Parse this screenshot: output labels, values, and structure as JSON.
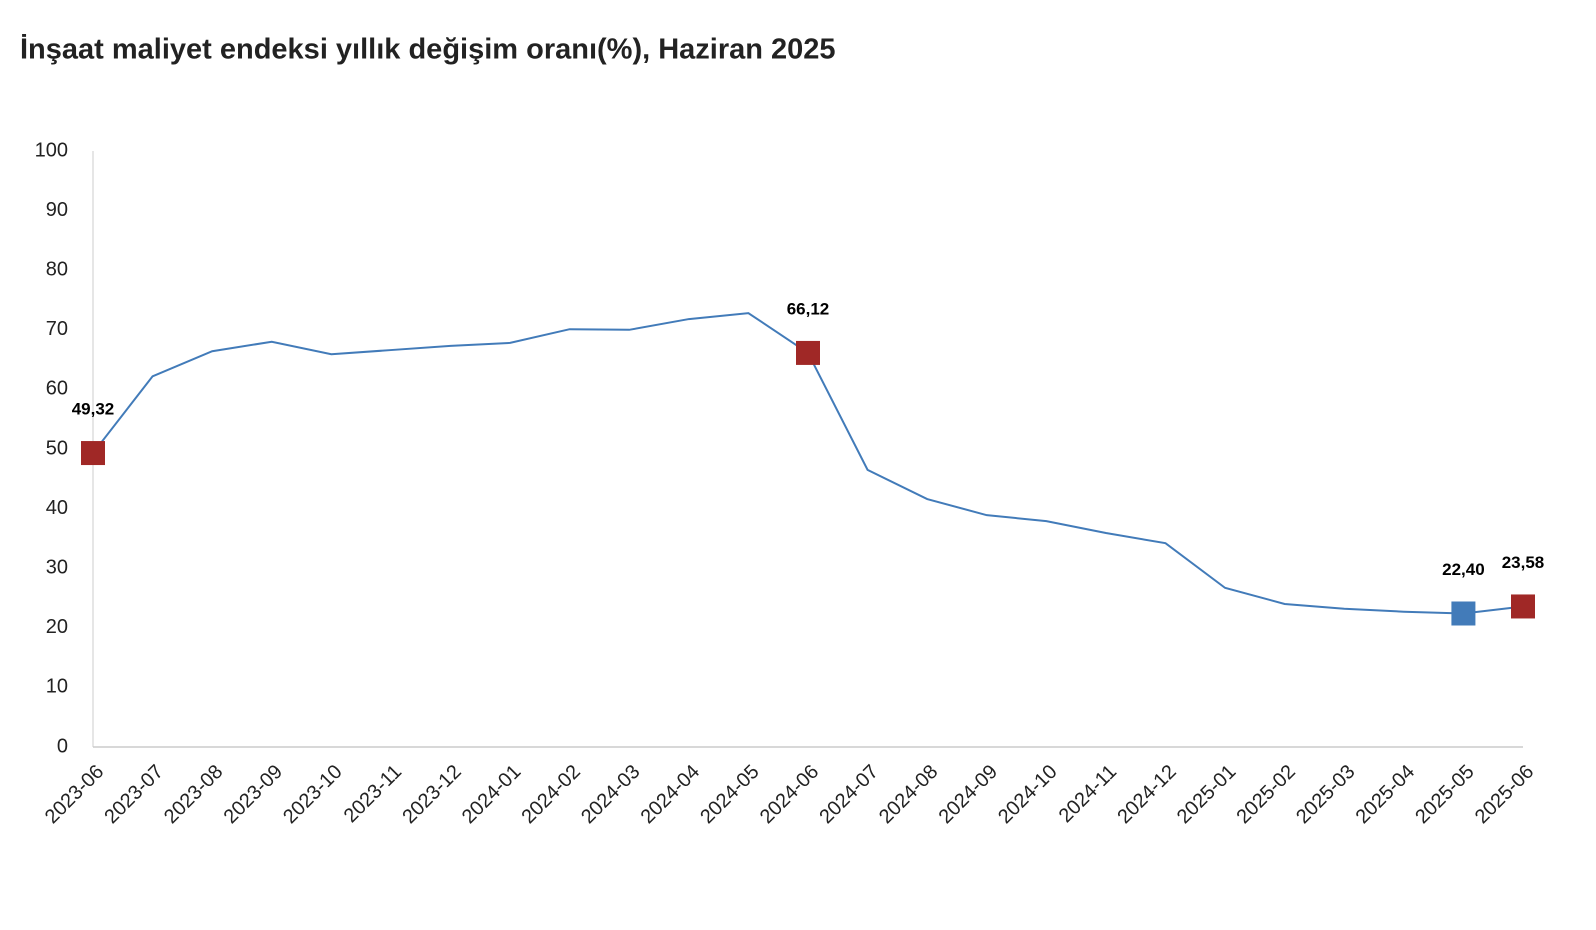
{
  "chart_data": {
    "type": "line",
    "title": "İnşaat maliyet endeksi yıllık değişim oranı(%), Haziran 2025",
    "categories": [
      "2023-06",
      "2023-07",
      "2023-08",
      "2023-09",
      "2023-10",
      "2023-11",
      "2023-12",
      "2024-01",
      "2024-02",
      "2024-03",
      "2024-04",
      "2024-05",
      "2024-06",
      "2024-07",
      "2024-08",
      "2024-09",
      "2024-10",
      "2024-11",
      "2024-12",
      "2025-01",
      "2025-02",
      "2025-03",
      "2025-04",
      "2025-05",
      "2025-06"
    ],
    "values": [
      49.32,
      62.2,
      66.4,
      68.0,
      65.9,
      66.6,
      67.3,
      67.8,
      70.1,
      70.0,
      71.8,
      72.8,
      66.12,
      46.5,
      41.6,
      38.9,
      37.9,
      35.9,
      34.2,
      26.7,
      24.0,
      23.2,
      22.7,
      22.4,
      23.58
    ],
    "value_labels": [
      "49,32",
      null,
      null,
      null,
      null,
      null,
      null,
      null,
      null,
      null,
      null,
      null,
      "66,12",
      null,
      null,
      null,
      null,
      null,
      null,
      null,
      null,
      null,
      null,
      "22,40",
      "23,58"
    ],
    "marker_colors": [
      "#a02826",
      null,
      null,
      null,
      null,
      null,
      null,
      null,
      null,
      null,
      null,
      null,
      "#a02826",
      null,
      null,
      null,
      null,
      null,
      null,
      null,
      null,
      null,
      null,
      "#427bb9",
      "#a02826"
    ],
    "color": "#427bb9",
    "ylim": [
      0,
      100
    ],
    "yticks": [
      0,
      10,
      20,
      30,
      40,
      50,
      60,
      70,
      80,
      90,
      100
    ]
  }
}
